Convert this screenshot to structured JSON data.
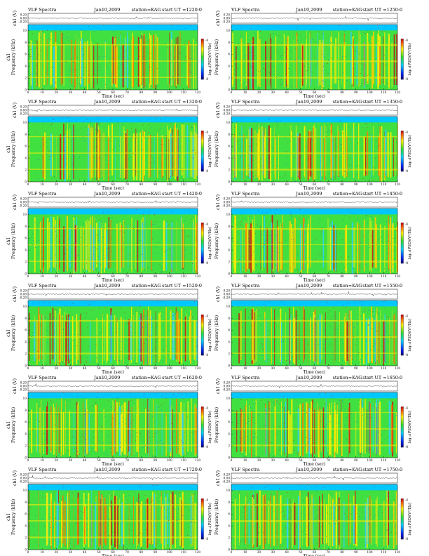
{
  "chart_data": [
    {
      "type": "heatmap",
      "title": "VLF Spectra",
      "date": "Jan10,2009",
      "station": "station=KAG",
      "start": "start  UT  =1220:0",
      "ylabel_wave": "ch1 (V)",
      "ylabel_spec": "Frequency (kHz)",
      "ylabel_spec_top": "ch1",
      "xlabel": "Time  (sec)",
      "colorbar_label": "log₁₀(PSD)(V²/Hz)",
      "wave_ticks": [
        "0.20",
        "0.00",
        "-0.20"
      ],
      "xticks": [
        "0",
        "10",
        "20",
        "30",
        "40",
        "50",
        "60",
        "70",
        "80",
        "90",
        "100",
        "110",
        "120"
      ],
      "yticks": [
        "0",
        "2",
        "4",
        "6",
        "8",
        "10"
      ],
      "xlim": [
        0,
        120
      ],
      "ylim": [
        0,
        10
      ],
      "colorbar_ticks": [
        "-4",
        "-8"
      ],
      "seed": 11
    },
    {
      "type": "heatmap",
      "title": "VLF Spectra",
      "date": "Jan10,2009",
      "station": "station=KAG",
      "start": "start  UT  =1250:0",
      "ylabel_wave": "ch1 (V)",
      "ylabel_spec": "Frequency (kHz)",
      "ylabel_spec_top": "",
      "xlabel": "Time  (sec)",
      "colorbar_label": "log₁₀(PSD)(V²/Hz)",
      "wave_ticks": [
        "0.20",
        "0.00",
        "-0.20"
      ],
      "xticks": [
        "0",
        "10",
        "20",
        "30",
        "40",
        "50",
        "60",
        "70",
        "80",
        "90",
        "100",
        "110",
        "120"
      ],
      "yticks": [
        "0",
        "2",
        "4",
        "6",
        "8",
        "10"
      ],
      "xlim": [
        0,
        120
      ],
      "ylim": [
        0,
        10
      ],
      "colorbar_ticks": [
        "-4",
        "-8"
      ],
      "seed": 23
    },
    {
      "type": "heatmap",
      "title": "VLF Spectra",
      "date": "Jan10,2009",
      "station": "station=KAG",
      "start": "start  UT  =1320:0",
      "ylabel_wave": "ch1 (V)",
      "ylabel_spec": "Frequency (kHz)",
      "ylabel_spec_top": "ch1",
      "xlabel": "Time  (sec)",
      "colorbar_label": "log₁₀(PSD)(V²/Hz)",
      "wave_ticks": [
        "0.20",
        "0.00",
        "-0.20"
      ],
      "xticks": [
        "0",
        "10",
        "20",
        "30",
        "40",
        "50",
        "60",
        "70",
        "80",
        "90",
        "100",
        "110",
        "120"
      ],
      "yticks": [
        "0",
        "2",
        "4",
        "6",
        "8",
        "10"
      ],
      "xlim": [
        0,
        120
      ],
      "ylim": [
        0,
        10
      ],
      "colorbar_ticks": [
        "-4",
        "-8"
      ],
      "seed": 37
    },
    {
      "type": "heatmap",
      "title": "VLF Spectra",
      "date": "Jan10,2009",
      "station": "station=KAG",
      "start": "start  UT  =1350:0",
      "ylabel_wave": "ch1 (V)",
      "ylabel_spec": "Frequency (kHz)",
      "ylabel_spec_top": "",
      "xlabel": "Time  (sec)",
      "colorbar_label": "log₁₀(PSD)(V²/Hz)",
      "wave_ticks": [
        "0.20",
        "0.00",
        "-0.20"
      ],
      "xticks": [
        "0",
        "10",
        "20",
        "30",
        "40",
        "50",
        "60",
        "70",
        "80",
        "90",
        "100",
        "110",
        "120"
      ],
      "yticks": [
        "0",
        "2",
        "4",
        "6",
        "8",
        "10"
      ],
      "xlim": [
        0,
        120
      ],
      "ylim": [
        0,
        10
      ],
      "colorbar_ticks": [
        "-4",
        "-8"
      ],
      "seed": 41
    },
    {
      "type": "heatmap",
      "title": "VLF Spectra",
      "date": "Jan10,2009",
      "station": "station=KAG",
      "start": "start  UT  =1420:0",
      "ylabel_wave": "ch1 (V)",
      "ylabel_spec": "Frequency (kHz)",
      "ylabel_spec_top": "ch1",
      "xlabel": "Time  (sec)",
      "colorbar_label": "log₁₀(PSD)(V²/Hz)",
      "wave_ticks": [
        "0.20",
        "0.00",
        "-0.20"
      ],
      "xticks": [
        "0",
        "10",
        "20",
        "30",
        "40",
        "50",
        "60",
        "70",
        "80",
        "90",
        "100",
        "110",
        "120"
      ],
      "yticks": [
        "0",
        "2",
        "4",
        "6",
        "8",
        "10"
      ],
      "xlim": [
        0,
        120
      ],
      "ylim": [
        0,
        10
      ],
      "colorbar_ticks": [
        "-4",
        "-8"
      ],
      "seed": 53
    },
    {
      "type": "heatmap",
      "title": "VLF Spectra",
      "date": "Jan10,2009",
      "station": "station=KAG",
      "start": "start  UT  =1450:0",
      "ylabel_wave": "ch1 (V)",
      "ylabel_spec": "Frequency (kHz)",
      "ylabel_spec_top": "",
      "xlabel": "Time  (sec)",
      "colorbar_label": "log₁₀(PSD)(V²/Hz)",
      "wave_ticks": [
        "0.20",
        "0.00",
        "-0.20"
      ],
      "xticks": [
        "0",
        "10",
        "20",
        "30",
        "40",
        "50",
        "60",
        "70",
        "80",
        "90",
        "100",
        "110",
        "120"
      ],
      "yticks": [
        "0",
        "2",
        "4",
        "6",
        "8",
        "10"
      ],
      "xlim": [
        0,
        120
      ],
      "ylim": [
        0,
        10
      ],
      "colorbar_ticks": [
        "-4",
        "-8"
      ],
      "seed": 67
    },
    {
      "type": "heatmap",
      "title": "VLF Spectra",
      "date": "Jan10,2009",
      "station": "station=KAG",
      "start": "start  UT  =1520:0",
      "ylabel_wave": "ch1 (V)",
      "ylabel_spec": "Frequency (kHz)",
      "ylabel_spec_top": "ch1",
      "xlabel": "Time  (sec)",
      "colorbar_label": "log₁₀(PSD)(V²/Hz)",
      "wave_ticks": [
        "0.20",
        "0.00",
        "-0.20"
      ],
      "xticks": [
        "0",
        "10",
        "20",
        "30",
        "40",
        "50",
        "60",
        "70",
        "80",
        "90",
        "100",
        "110",
        "120"
      ],
      "yticks": [
        "0",
        "2",
        "4",
        "6",
        "8",
        "10"
      ],
      "xlim": [
        0,
        120
      ],
      "ylim": [
        0,
        10
      ],
      "colorbar_ticks": [
        "-4",
        "-8"
      ],
      "seed": 71
    },
    {
      "type": "heatmap",
      "title": "VLF Spectra",
      "date": "Jan10,2009",
      "station": "station=KAG",
      "start": "start  UT  =1550:0",
      "ylabel_wave": "ch1 (V)",
      "ylabel_spec": "Frequency (kHz)",
      "ylabel_spec_top": "",
      "xlabel": "Time  (sec)",
      "colorbar_label": "log₁₀(PSD)(V²/Hz)",
      "wave_ticks": [
        "0.20",
        "0.00",
        "-0.20"
      ],
      "xticks": [
        "0",
        "10",
        "20",
        "30",
        "40",
        "50",
        "60",
        "70",
        "80",
        "90",
        "100",
        "110",
        "120"
      ],
      "yticks": [
        "0",
        "2",
        "4",
        "6",
        "8",
        "10"
      ],
      "xlim": [
        0,
        120
      ],
      "ylim": [
        0,
        10
      ],
      "colorbar_ticks": [
        "-4",
        "-8"
      ],
      "seed": 83
    },
    {
      "type": "heatmap",
      "title": "VLF Spectra",
      "date": "Jan10,2009",
      "station": "station=KAG",
      "start": "start  UT  =1620:0",
      "ylabel_wave": "ch1 (V)",
      "ylabel_spec": "Frequency (kHz)",
      "ylabel_spec_top": "ch1",
      "xlabel": "Time  (sec)",
      "colorbar_label": "log₁₀(PSD)(V²/Hz)",
      "wave_ticks": [
        "0.20",
        "0.00",
        "-0.20"
      ],
      "xticks": [
        "0",
        "10",
        "20",
        "30",
        "40",
        "50",
        "60",
        "70",
        "80",
        "90",
        "100",
        "110",
        "120"
      ],
      "yticks": [
        "0",
        "2",
        "4",
        "6",
        "8",
        "10"
      ],
      "xlim": [
        0,
        120
      ],
      "ylim": [
        0,
        10
      ],
      "colorbar_ticks": [
        "-4",
        "-8"
      ],
      "seed": 97
    },
    {
      "type": "heatmap",
      "title": "VLF Spectra",
      "date": "Jan10,2009",
      "station": "station=KAG",
      "start": "start  UT  =1650:0",
      "ylabel_wave": "ch1 (V)",
      "ylabel_spec": "Frequency (kHz)",
      "ylabel_spec_top": "",
      "xlabel": "Time  (sec)",
      "colorbar_label": "log₁₀(PSD)(V²/Hz)",
      "wave_ticks": [
        "0.20",
        "0.00",
        "-0.20"
      ],
      "xticks": [
        "0",
        "10",
        "20",
        "30",
        "40",
        "50",
        "60",
        "70",
        "80",
        "90",
        "100",
        "110",
        "120"
      ],
      "yticks": [
        "0",
        "2",
        "4",
        "6",
        "8",
        "10"
      ],
      "xlim": [
        0,
        120
      ],
      "ylim": [
        0,
        10
      ],
      "colorbar_ticks": [
        "-4",
        "-8"
      ],
      "seed": 101
    },
    {
      "type": "heatmap",
      "title": "VLF Spectra",
      "date": "Jan10,2009",
      "station": "station=KAG",
      "start": "start  UT  =1720:0",
      "ylabel_wave": "ch1 (V)",
      "ylabel_spec": "Frequency (kHz)",
      "ylabel_spec_top": "ch1",
      "xlabel": "Time  (sec)",
      "colorbar_label": "log₁₀(PSD)(V²/Hz)",
      "wave_ticks": [
        "0.20",
        "0.00",
        "-0.20"
      ],
      "xticks": [
        "0",
        "10",
        "20",
        "30",
        "40",
        "50",
        "60",
        "70",
        "80",
        "90",
        "100",
        "110",
        "120"
      ],
      "yticks": [
        "0",
        "2",
        "4",
        "6",
        "8",
        "10"
      ],
      "xlim": [
        0,
        120
      ],
      "ylim": [
        0,
        10
      ],
      "colorbar_ticks": [
        "-4",
        "-8"
      ],
      "seed": 113
    },
    {
      "type": "heatmap",
      "title": "VLF Spectra",
      "date": "Jan10,2009",
      "station": "station=KAG",
      "start": "start  UT  =1750:0",
      "ylabel_wave": "ch1 (V)",
      "ylabel_spec": "Frequency (kHz)",
      "ylabel_spec_top": "",
      "xlabel": "Time  (sec)",
      "colorbar_label": "log₁₀(PSD)(V²/Hz)",
      "wave_ticks": [
        "0.20",
        "0.00",
        "-0.20"
      ],
      "xticks": [
        "0",
        "10",
        "20",
        "30",
        "40",
        "50",
        "60",
        "70",
        "80",
        "90",
        "100",
        "110",
        "120"
      ],
      "yticks": [
        "0",
        "2",
        "4",
        "6",
        "8",
        "10"
      ],
      "xlim": [
        0,
        120
      ],
      "ylim": [
        0,
        10
      ],
      "colorbar_ticks": [
        "-4",
        "-8"
      ],
      "seed": 127
    }
  ],
  "colors": {
    "background": "#00c8ff",
    "low": "#0050ff",
    "mid": "#40e040",
    "high": "#ffee00",
    "peak": "#d01010"
  }
}
